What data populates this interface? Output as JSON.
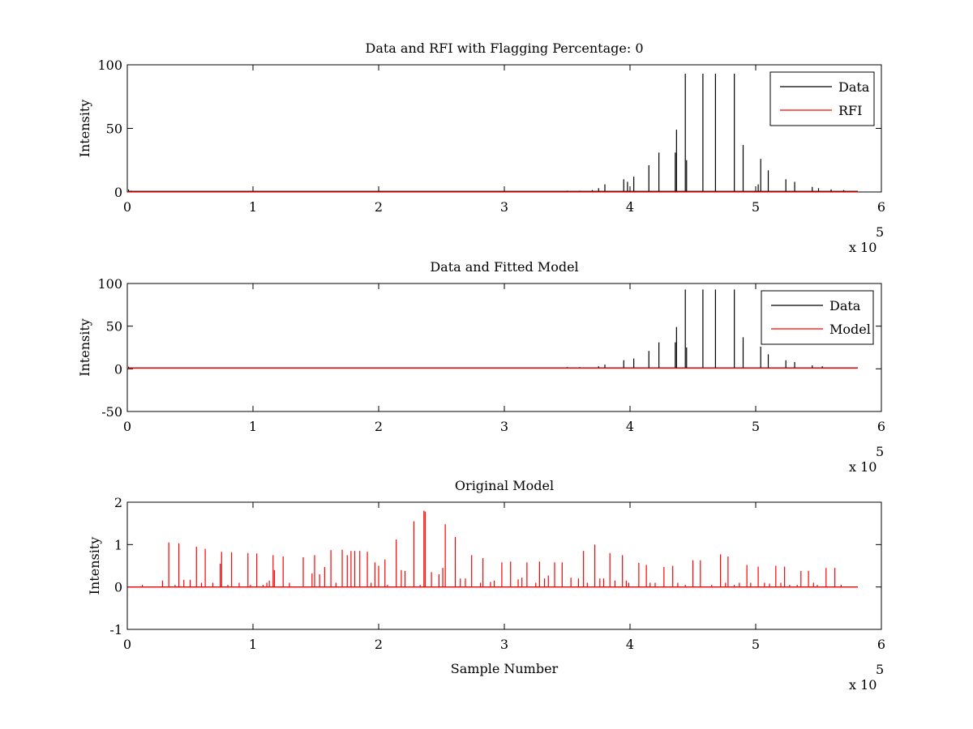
{
  "chart_data": [
    {
      "type": "line",
      "title": "Data and RFI with Flagging Percentage: 0",
      "xlabel": "",
      "ylabel": "Intensity",
      "xlim": [
        0,
        600000
      ],
      "ylim": [
        0,
        100
      ],
      "xticks": [
        "0",
        "1",
        "2",
        "3",
        "4",
        "5",
        "6"
      ],
      "yticks": [
        "0",
        "50",
        "100"
      ],
      "exponent_label": "x 10",
      "exponent_power": "5",
      "legend": "top-right",
      "grid": false,
      "series": [
        {
          "name": "Data",
          "color": "#000000",
          "baseline": 0.5,
          "spikes": [
            [
              1000,
              2
            ],
            [
              3000,
              1
            ],
            [
              350000,
              1
            ],
            [
              360000,
              1
            ],
            [
              370000,
              1.5
            ],
            [
              375000,
              3
            ],
            [
              380000,
              6
            ],
            [
              395000,
              10
            ],
            [
              398000,
              8
            ],
            [
              403000,
              12
            ],
            [
              415000,
              21
            ],
            [
              423000,
              31
            ],
            [
              436000,
              31
            ],
            [
              437000,
              49
            ],
            [
              444000,
              93
            ],
            [
              445000,
              25
            ],
            [
              458000,
              93
            ],
            [
              468000,
              93
            ],
            [
              483000,
              93
            ],
            [
              490000,
              37
            ],
            [
              502000,
              6
            ],
            [
              504000,
              26
            ],
            [
              510000,
              17
            ],
            [
              524000,
              10
            ],
            [
              531000,
              8
            ],
            [
              545000,
              4
            ],
            [
              550000,
              3
            ],
            [
              560000,
              2
            ],
            [
              570000,
              1.5
            ]
          ]
        },
        {
          "name": "RFI",
          "color": "#ff0000",
          "baseline": 0,
          "spikes": []
        }
      ]
    },
    {
      "type": "line",
      "title": "Data and Fitted Model",
      "xlabel": "",
      "ylabel": "Intensity",
      "xlim": [
        0,
        600000
      ],
      "ylim": [
        -50,
        100
      ],
      "xticks": [
        "0",
        "1",
        "2",
        "3",
        "4",
        "5",
        "6"
      ],
      "yticks": [
        "-50",
        "0",
        "50",
        "100"
      ],
      "exponent_label": "x 10",
      "exponent_power": "5",
      "legend": "top-right",
      "grid": false,
      "series": [
        {
          "name": "Data",
          "color": "#000000",
          "baseline": 1,
          "spikes": [
            [
              1000,
              2.5
            ],
            [
              350000,
              2
            ],
            [
              360000,
              2
            ],
            [
              375000,
              3
            ],
            [
              380000,
              5
            ],
            [
              395000,
              10
            ],
            [
              403000,
              12
            ],
            [
              415000,
              21
            ],
            [
              423000,
              31
            ],
            [
              436000,
              31
            ],
            [
              437000,
              49
            ],
            [
              444000,
              93
            ],
            [
              445000,
              25
            ],
            [
              458000,
              93
            ],
            [
              468000,
              93
            ],
            [
              483000,
              93
            ],
            [
              490000,
              37
            ],
            [
              504000,
              26
            ],
            [
              510000,
              17
            ],
            [
              524000,
              10
            ],
            [
              531000,
              8
            ],
            [
              545000,
              4
            ],
            [
              553000,
              3
            ]
          ]
        },
        {
          "name": "Model",
          "color": "#ff0000",
          "baseline": 0.8,
          "spikes": []
        }
      ]
    },
    {
      "type": "line",
      "title": "Original Model",
      "xlabel": "Sample Number",
      "ylabel": "Intensity",
      "xlim": [
        0,
        600000
      ],
      "ylim": [
        -1,
        2
      ],
      "xticks": [
        "0",
        "1",
        "2",
        "3",
        "4",
        "5",
        "6"
      ],
      "yticks": [
        "-1",
        "0",
        "1",
        "2"
      ],
      "exponent_label": "x 10",
      "exponent_power": "5",
      "legend": "none",
      "grid": false,
      "series": [
        {
          "name": "",
          "color": "#ff0000",
          "baseline": 0,
          "spikes": [
            [
              12000,
              0.05
            ],
            [
              28000,
              0.15
            ],
            [
              33000,
              1.05
            ],
            [
              38000,
              0.05
            ],
            [
              41000,
              1.03
            ],
            [
              45000,
              0.17
            ],
            [
              50000,
              0.17
            ],
            [
              55000,
              0.95
            ],
            [
              59000,
              0.1
            ],
            [
              62000,
              0.9
            ],
            [
              68000,
              0.1
            ],
            [
              74000,
              0.55
            ],
            [
              75000,
              0.83
            ],
            [
              80000,
              0.05
            ],
            [
              83000,
              0.82
            ],
            [
              89000,
              0.1
            ],
            [
              96000,
              0.8
            ],
            [
              98000,
              0.05
            ],
            [
              103000,
              0.79
            ],
            [
              108000,
              0.05
            ],
            [
              111000,
              0.1
            ],
            [
              113000,
              0.15
            ],
            [
              116000,
              0.75
            ],
            [
              117000,
              0.4
            ],
            [
              124000,
              0.72
            ],
            [
              129000,
              0.1
            ],
            [
              140000,
              0.7
            ],
            [
              147000,
              0.32
            ],
            [
              149000,
              0.75
            ],
            [
              153000,
              0.3
            ],
            [
              157000,
              0.47
            ],
            [
              162000,
              0.87
            ],
            [
              166000,
              0.1
            ],
            [
              171000,
              0.88
            ],
            [
              175000,
              0.75
            ],
            [
              178000,
              0.85
            ],
            [
              181000,
              0.85
            ],
            [
              185000,
              0.85
            ],
            [
              191000,
              0.83
            ],
            [
              194000,
              0.1
            ],
            [
              197000,
              0.58
            ],
            [
              200000,
              0.5
            ],
            [
              205000,
              0.65
            ],
            [
              207000,
              0.05
            ],
            [
              214000,
              1.12
            ],
            [
              218000,
              0.4
            ],
            [
              221000,
              0.38
            ],
            [
              228000,
              1.55
            ],
            [
              233000,
              0.05
            ],
            [
              236000,
              1.8
            ],
            [
              237000,
              1.78
            ],
            [
              242000,
              0.35
            ],
            [
              248000,
              0.3
            ],
            [
              251000,
              0.45
            ],
            [
              253000,
              1.48
            ],
            [
              261000,
              1.18
            ],
            [
              265000,
              0.2
            ],
            [
              269000,
              0.2
            ],
            [
              274000,
              0.75
            ],
            [
              281000,
              0.1
            ],
            [
              283000,
              0.68
            ],
            [
              289000,
              0.12
            ],
            [
              292000,
              0.15
            ],
            [
              298000,
              0.58
            ],
            [
              305000,
              0.6
            ],
            [
              311000,
              0.18
            ],
            [
              314000,
              0.22
            ],
            [
              318000,
              0.58
            ],
            [
              325000,
              0.1
            ],
            [
              328000,
              0.6
            ],
            [
              332000,
              0.2
            ],
            [
              335000,
              0.27
            ],
            [
              340000,
              0.58
            ],
            [
              346000,
              0.58
            ],
            [
              353000,
              0.22
            ],
            [
              359000,
              0.2
            ],
            [
              363000,
              0.85
            ],
            [
              366000,
              0.1
            ],
            [
              372000,
              1.0
            ],
            [
              376000,
              0.2
            ],
            [
              379000,
              0.2
            ],
            [
              384000,
              0.8
            ],
            [
              388000,
              0.15
            ],
            [
              394000,
              0.75
            ],
            [
              397000,
              0.15
            ],
            [
              399000,
              0.1
            ],
            [
              407000,
              0.57
            ],
            [
              413000,
              0.52
            ],
            [
              416000,
              0.1
            ],
            [
              420000,
              0.1
            ],
            [
              427000,
              0.47
            ],
            [
              434000,
              0.5
            ],
            [
              438000,
              0.1
            ],
            [
              444000,
              0.05
            ],
            [
              450000,
              0.63
            ],
            [
              456000,
              0.63
            ],
            [
              465000,
              0.05
            ],
            [
              472000,
              0.77
            ],
            [
              476000,
              0.1
            ],
            [
              478000,
              0.72
            ],
            [
              483000,
              0.05
            ],
            [
              487000,
              0.1
            ],
            [
              493000,
              0.52
            ],
            [
              496000,
              0.1
            ],
            [
              502000,
              0.48
            ],
            [
              507000,
              0.1
            ],
            [
              511000,
              0.08
            ],
            [
              516000,
              0.5
            ],
            [
              520000,
              0.1
            ],
            [
              523000,
              0.48
            ],
            [
              527000,
              0.05
            ],
            [
              533000,
              0.05
            ],
            [
              536000,
              0.38
            ],
            [
              542000,
              0.38
            ],
            [
              546000,
              0.1
            ],
            [
              549000,
              0.05
            ],
            [
              556000,
              0.45
            ],
            [
              563000,
              0.45
            ],
            [
              568000,
              0.05
            ]
          ]
        }
      ]
    }
  ]
}
